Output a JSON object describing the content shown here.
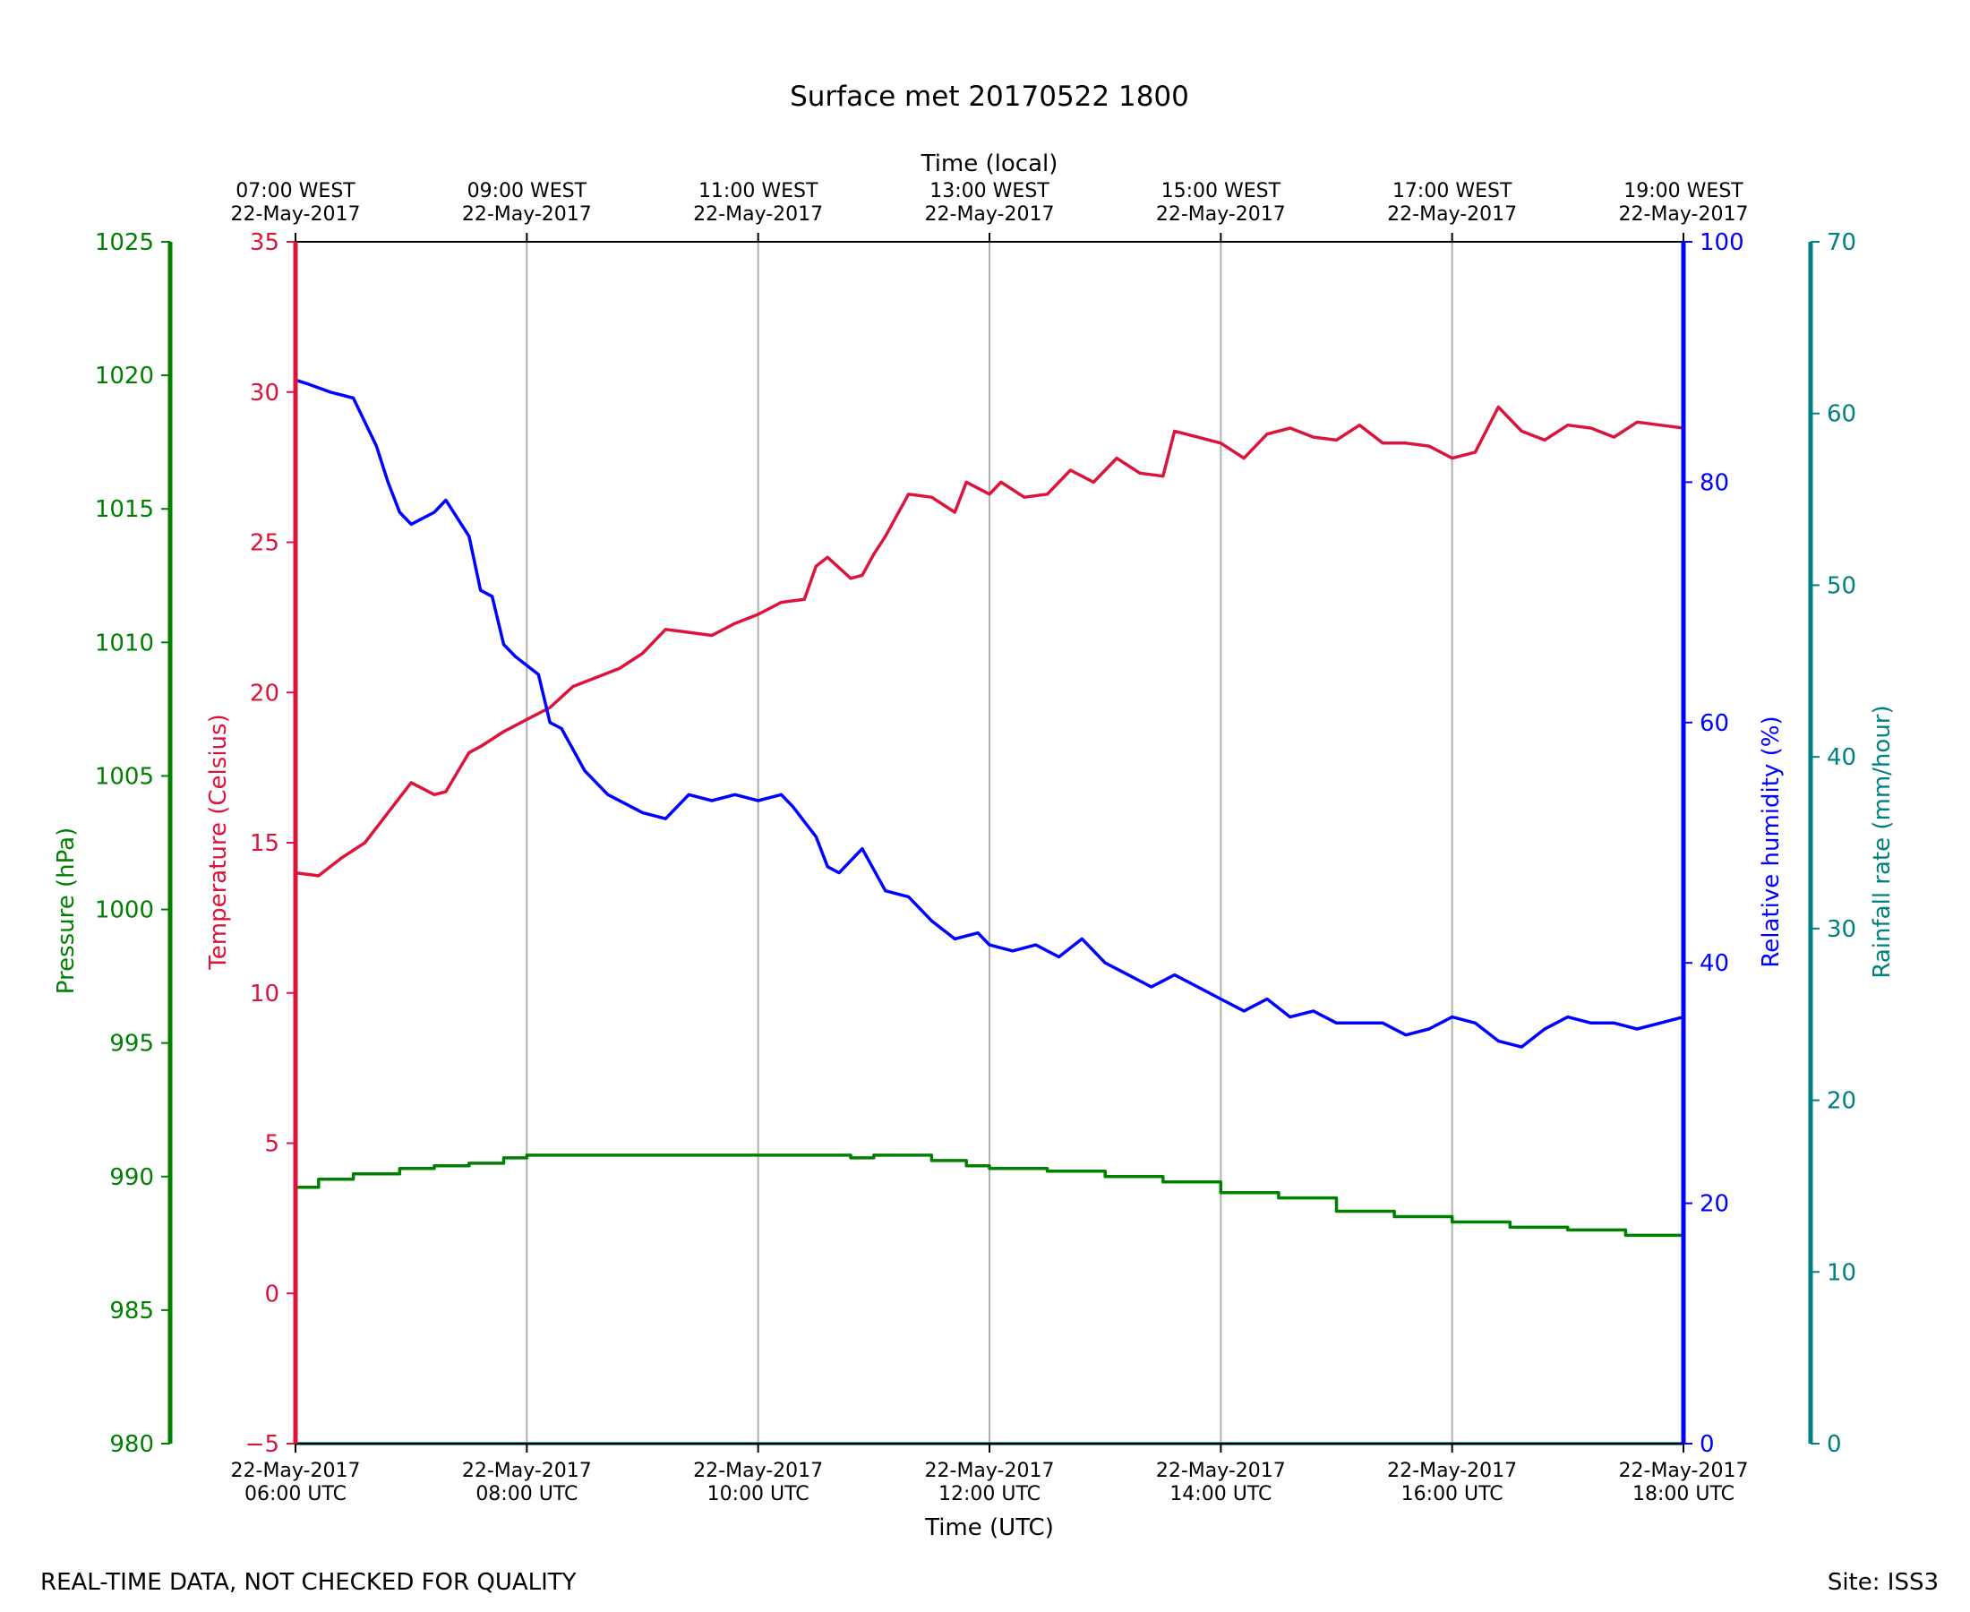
{
  "chart_data": {
    "type": "line",
    "title": "Surface met 20170522 1800",
    "top_xlabel": "Time (local)",
    "xlabel": "Time (UTC)",
    "footer_left": "REAL-TIME DATA, NOT CHECKED FOR QUALITY",
    "footer_right": "Site: ISS3",
    "x_range_hours_utc": [
      6,
      18
    ],
    "x_ticks_utc": [
      {
        "hour": 6,
        "date": "22-May-2017",
        "time": "06:00 UTC"
      },
      {
        "hour": 8,
        "date": "22-May-2017",
        "time": "08:00 UTC"
      },
      {
        "hour": 10,
        "date": "22-May-2017",
        "time": "10:00 UTC"
      },
      {
        "hour": 12,
        "date": "22-May-2017",
        "time": "12:00 UTC"
      },
      {
        "hour": 14,
        "date": "22-May-2017",
        "time": "14:00 UTC"
      },
      {
        "hour": 16,
        "date": "22-May-2017",
        "time": "16:00 UTC"
      },
      {
        "hour": 18,
        "date": "22-May-2017",
        "time": "18:00 UTC"
      }
    ],
    "x_ticks_local": [
      {
        "hour": 6,
        "time": "07:00 WEST",
        "date": "22-May-2017"
      },
      {
        "hour": 8,
        "time": "09:00 WEST",
        "date": "22-May-2017"
      },
      {
        "hour": 10,
        "time": "11:00 WEST",
        "date": "22-May-2017"
      },
      {
        "hour": 12,
        "time": "13:00 WEST",
        "date": "22-May-2017"
      },
      {
        "hour": 14,
        "time": "15:00 WEST",
        "date": "22-May-2017"
      },
      {
        "hour": 16,
        "time": "17:00 WEST",
        "date": "22-May-2017"
      },
      {
        "hour": 18,
        "time": "19:00 WEST",
        "date": "22-May-2017"
      }
    ],
    "grid_vertical_hours": [
      8,
      10,
      12,
      14,
      16
    ],
    "axes": {
      "pressure": {
        "label": "Pressure (hPa)",
        "color": "#008000",
        "range": [
          980,
          1025
        ],
        "ticks": [
          980,
          985,
          990,
          995,
          1000,
          1005,
          1010,
          1015,
          1020,
          1025
        ]
      },
      "temperature": {
        "label": "Temperature (Celsius)",
        "color": "#dc143c",
        "range": [
          -5,
          35
        ],
        "ticks": [
          -5,
          0,
          5,
          10,
          15,
          20,
          25,
          30,
          35
        ],
        "tick_labels": [
          "−5",
          "0",
          "5",
          "10",
          "15",
          "20",
          "25",
          "30",
          "35"
        ]
      },
      "humidity": {
        "label": "Relative humidity (%)",
        "color": "#0000ff",
        "range": [
          0,
          100
        ],
        "ticks": [
          0,
          20,
          40,
          60,
          80,
          100
        ]
      },
      "rainfall": {
        "label": "Rainfall rate (mm/hour)",
        "color": "#008080",
        "range": [
          0,
          70
        ],
        "ticks": [
          0,
          10,
          20,
          30,
          40,
          50,
          60,
          70
        ]
      }
    },
    "series": [
      {
        "name": "Temperature",
        "axis": "temperature",
        "color": "#dc143c",
        "x": [
          6.0,
          6.2,
          6.4,
          6.6,
          6.8,
          7.0,
          7.2,
          7.3,
          7.5,
          7.6,
          7.8,
          8.0,
          8.2,
          8.4,
          8.6,
          8.8,
          9.0,
          9.2,
          9.4,
          9.6,
          9.8,
          10.0,
          10.2,
          10.4,
          10.5,
          10.6,
          10.8,
          10.9,
          11.0,
          11.1,
          11.3,
          11.5,
          11.7,
          11.8,
          12.0,
          12.1,
          12.3,
          12.5,
          12.7,
          12.9,
          13.1,
          13.3,
          13.5,
          13.6,
          13.8,
          14.0,
          14.2,
          14.4,
          14.6,
          14.8,
          15.0,
          15.2,
          15.4,
          15.6,
          15.8,
          16.0,
          16.2,
          16.4,
          16.6,
          16.8,
          17.0,
          17.2,
          17.4,
          17.6,
          17.8,
          18.0
        ],
        "y": [
          14.0,
          13.9,
          14.5,
          15.0,
          16.0,
          17.0,
          16.6,
          16.7,
          18.0,
          18.2,
          18.7,
          19.1,
          19.5,
          20.2,
          20.5,
          20.8,
          21.3,
          22.1,
          22.0,
          21.9,
          22.3,
          22.6,
          23.0,
          23.1,
          24.2,
          24.5,
          23.8,
          23.9,
          24.6,
          25.2,
          26.6,
          26.5,
          26.0,
          27.0,
          26.6,
          27.0,
          26.5,
          26.6,
          27.4,
          27.0,
          27.8,
          27.3,
          27.2,
          28.7,
          28.5,
          28.3,
          27.8,
          28.6,
          28.8,
          28.5,
          28.4,
          28.9,
          28.3,
          28.3,
          28.2,
          27.8,
          28.0,
          29.5,
          28.7,
          28.4,
          28.9,
          28.8,
          28.5,
          29.0,
          28.9,
          28.8
        ]
      },
      {
        "name": "Relative humidity",
        "axis": "humidity",
        "color": "#0000ff",
        "x": [
          6.0,
          6.1,
          6.3,
          6.5,
          6.7,
          6.8,
          6.9,
          7.0,
          7.2,
          7.3,
          7.5,
          7.6,
          7.7,
          7.8,
          7.9,
          8.1,
          8.2,
          8.3,
          8.5,
          8.7,
          8.9,
          9.0,
          9.2,
          9.4,
          9.6,
          9.8,
          10.0,
          10.2,
          10.3,
          10.5,
          10.6,
          10.7,
          10.9,
          11.1,
          11.3,
          11.5,
          11.7,
          11.9,
          12.0,
          12.2,
          12.4,
          12.6,
          12.8,
          13.0,
          13.2,
          13.4,
          13.6,
          13.8,
          14.0,
          14.2,
          14.4,
          14.6,
          14.8,
          15.0,
          15.2,
          15.4,
          15.6,
          15.8,
          16.0,
          16.2,
          16.4,
          16.6,
          16.8,
          17.0,
          17.2,
          17.4,
          17.6,
          17.8,
          18.0
        ],
        "y": [
          88.5,
          88.2,
          87.5,
          87.0,
          83.0,
          80.0,
          77.5,
          76.5,
          77.5,
          78.5,
          75.5,
          71.0,
          70.5,
          66.5,
          65.5,
          64.0,
          60.0,
          59.5,
          56.0,
          54.0,
          53.0,
          52.5,
          52.0,
          54.0,
          53.5,
          54.0,
          53.5,
          54.0,
          53.0,
          50.5,
          48.0,
          47.5,
          49.5,
          46.0,
          45.5,
          43.5,
          42.0,
          42.5,
          41.5,
          41.0,
          41.5,
          40.5,
          42.0,
          40.0,
          39.0,
          38.0,
          39.0,
          38.0,
          37.0,
          36.0,
          37.0,
          35.5,
          36.0,
          35.0,
          35.0,
          35.0,
          34.0,
          34.5,
          35.5,
          35.0,
          33.5,
          33.0,
          34.5,
          35.5,
          35.0,
          35.0,
          34.5,
          35.0,
          35.5
        ]
      },
      {
        "name": "Pressure",
        "axis": "pressure",
        "color": "#008000",
        "step": true,
        "x": [
          6.0,
          6.2,
          6.5,
          6.9,
          7.2,
          7.5,
          7.8,
          8.0,
          8.2,
          8.8,
          9.5,
          10.0,
          10.5,
          10.8,
          11.0,
          11.2,
          11.5,
          11.8,
          12.0,
          12.5,
          13.0,
          13.5,
          14.0,
          14.5,
          15.0,
          15.5,
          16.0,
          16.5,
          17.0,
          17.5,
          18.0
        ],
        "y": [
          989.6,
          989.9,
          990.1,
          990.3,
          990.4,
          990.5,
          990.7,
          990.8,
          990.8,
          990.8,
          990.8,
          990.8,
          990.8,
          990.7,
          990.8,
          990.8,
          990.6,
          990.4,
          990.3,
          990.2,
          990.0,
          989.8,
          989.4,
          989.2,
          988.7,
          988.5,
          988.3,
          988.1,
          988.0,
          987.8,
          987.6
        ]
      },
      {
        "name": "Rainfall rate",
        "axis": "rainfall",
        "color": "#008080",
        "x": [
          6.0,
          18.0
        ],
        "y": [
          0.0,
          0.0
        ]
      }
    ]
  }
}
